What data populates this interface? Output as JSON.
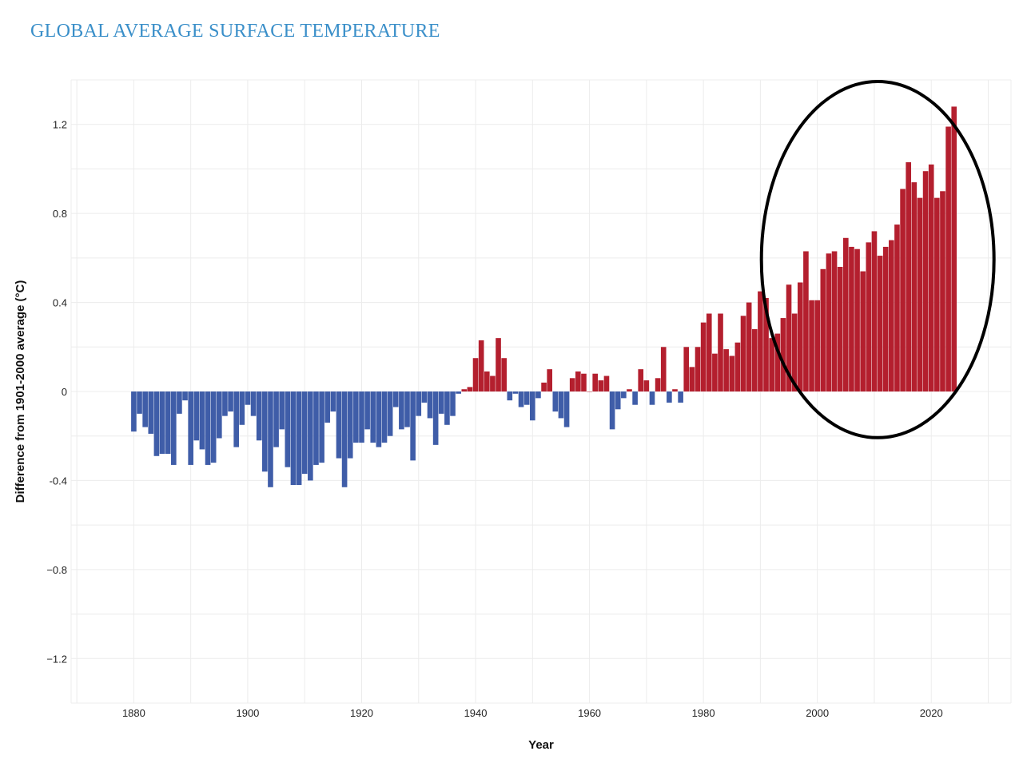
{
  "chart_data": {
    "type": "bar",
    "title": "GLOBAL AVERAGE SURFACE TEMPERATURE",
    "xlabel": "Year",
    "ylabel": "Difference from 1901-2000 average (°C)",
    "xlim": [
      1869,
      2034
    ],
    "ylim": [
      -1.4,
      1.4
    ],
    "x_ticks": [
      1880,
      1900,
      1920,
      1940,
      1960,
      1980,
      2000,
      2020
    ],
    "y_ticks": [
      1.2,
      0.8,
      0.4,
      0,
      -0.4,
      -0.8,
      -1.2
    ],
    "y_tick_labels": [
      "1.2",
      "0.8",
      "0.4",
      "0",
      "-0.4",
      "−0.8",
      "−1.2"
    ],
    "grid": true,
    "colors": {
      "positive": "#b41f2e",
      "negative": "#3f5da8",
      "title": "#3a8fc9",
      "annotation": "#000000"
    },
    "annotation": {
      "shape": "ellipse",
      "covers_years": [
        1992,
        2024
      ]
    },
    "start_year": 1880,
    "values": [
      -0.18,
      -0.1,
      -0.16,
      -0.19,
      -0.29,
      -0.28,
      -0.28,
      -0.33,
      -0.1,
      -0.04,
      -0.33,
      -0.22,
      -0.26,
      -0.33,
      -0.32,
      -0.21,
      -0.11,
      -0.09,
      -0.25,
      -0.15,
      -0.06,
      -0.11,
      -0.22,
      -0.36,
      -0.43,
      -0.25,
      -0.17,
      -0.34,
      -0.42,
      -0.42,
      -0.37,
      -0.4,
      -0.33,
      -0.32,
      -0.14,
      -0.09,
      -0.3,
      -0.43,
      -0.3,
      -0.23,
      -0.23,
      -0.17,
      -0.23,
      -0.25,
      -0.23,
      -0.2,
      -0.07,
      -0.17,
      -0.16,
      -0.31,
      -0.11,
      -0.05,
      -0.12,
      -0.24,
      -0.1,
      -0.15,
      -0.11,
      -0.01,
      0.01,
      0.02,
      0.15,
      0.23,
      0.09,
      0.07,
      0.24,
      0.15,
      -0.04,
      -0.01,
      -0.07,
      -0.06,
      -0.13,
      -0.03,
      0.04,
      0.1,
      -0.09,
      -0.12,
      -0.16,
      0.06,
      0.09,
      0.08,
      0.0,
      0.08,
      0.05,
      0.07,
      -0.17,
      -0.08,
      -0.03,
      0.01,
      -0.06,
      0.1,
      0.05,
      -0.06,
      0.06,
      0.2,
      -0.05,
      0.01,
      -0.05,
      0.2,
      0.11,
      0.2,
      0.31,
      0.35,
      0.17,
      0.35,
      0.19,
      0.16,
      0.22,
      0.34,
      0.4,
      0.28,
      0.45,
      0.42,
      0.24,
      0.26,
      0.33,
      0.48,
      0.35,
      0.49,
      0.63,
      0.41,
      0.41,
      0.55,
      0.62,
      0.63,
      0.56,
      0.69,
      0.65,
      0.64,
      0.54,
      0.67,
      0.72,
      0.61,
      0.65,
      0.68,
      0.75,
      0.91,
      1.03,
      0.94,
      0.87,
      0.99,
      1.02,
      0.87,
      0.9,
      1.19,
      1.28
    ]
  }
}
